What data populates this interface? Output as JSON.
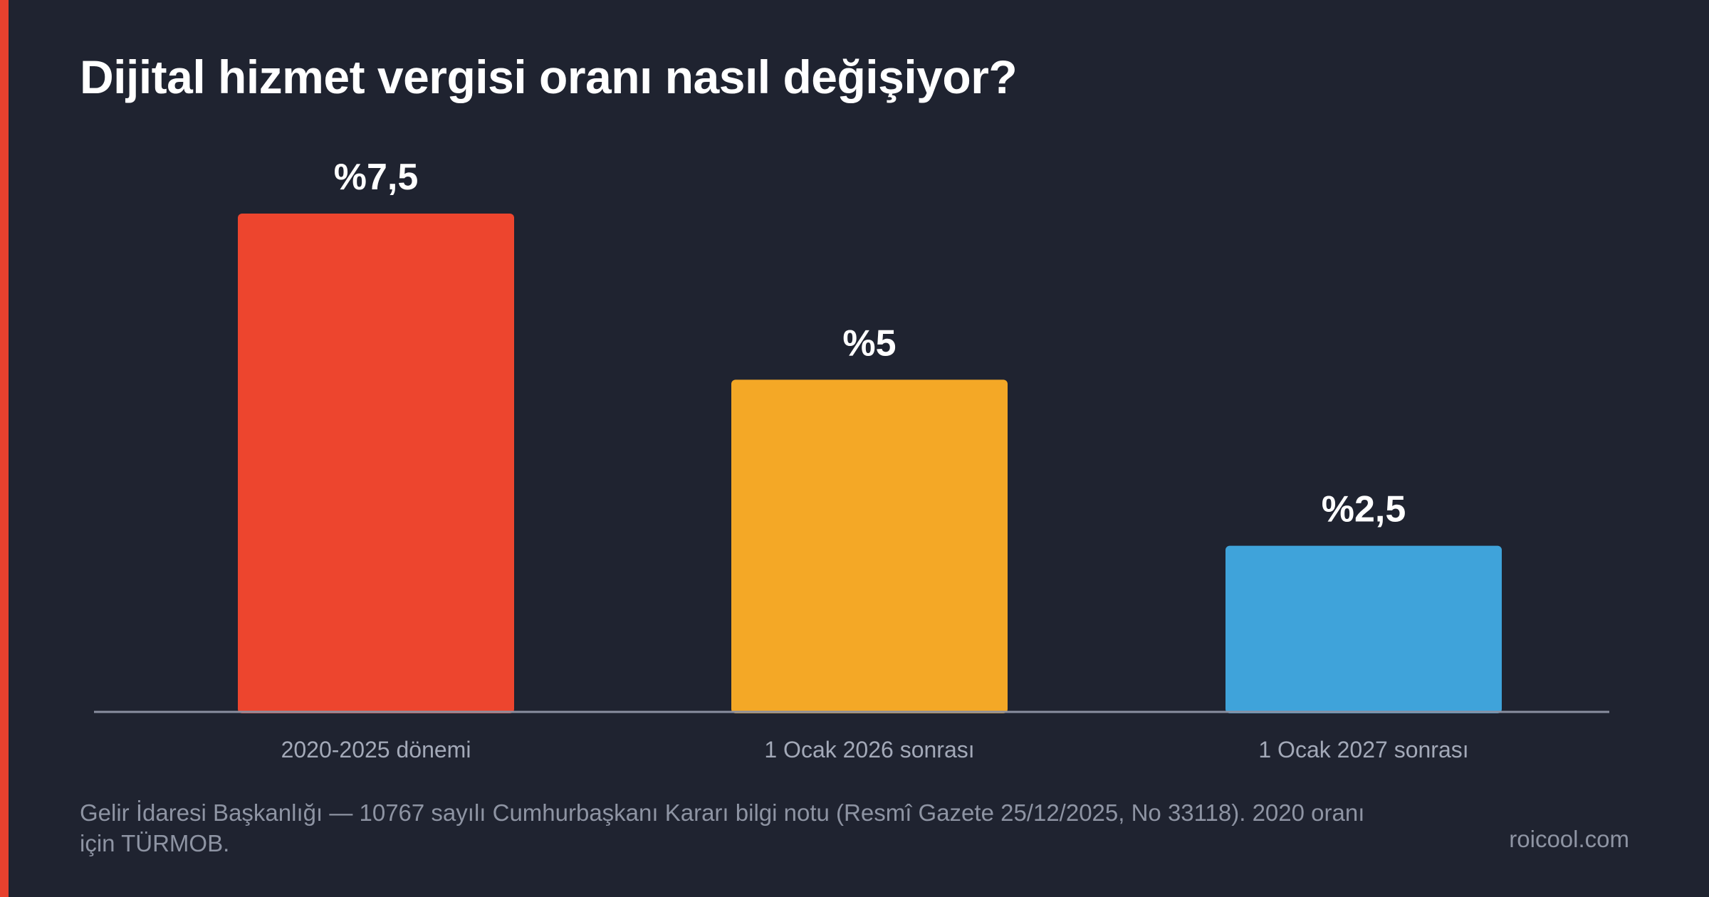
{
  "title": "Dijital hizmet vergisi oranı nasıl değişiyor?",
  "colors": {
    "background": "#1f2330",
    "accent": "#e8412e",
    "axis": "#8a8fa0"
  },
  "chart_data": {
    "type": "bar",
    "title": "Dijital hizmet vergisi oranı nasıl değişiyor?",
    "xlabel": "",
    "ylabel": "",
    "ylim": [
      0,
      7.5
    ],
    "grid": false,
    "legend": "none",
    "categories": [
      "2020-2025 dönemi",
      "1 Ocak 2026 sonrası",
      "1 Ocak 2027 sonrası"
    ],
    "values": [
      7.5,
      5,
      2.5
    ],
    "value_labels": [
      "%7,5",
      "%5",
      "%2,5"
    ],
    "bar_colors": [
      "#ed452e",
      "#f4a826",
      "#3fa3da"
    ]
  },
  "footer": {
    "source": "Gelir İdaresi Başkanlığı — 10767 sayılı Cumhurbaşkanı Kararı bilgi notu (Resmî Gazete 25/12/2025, No 33118). 2020 oranı için TÜRMOB.",
    "brand": "roicool.com"
  }
}
